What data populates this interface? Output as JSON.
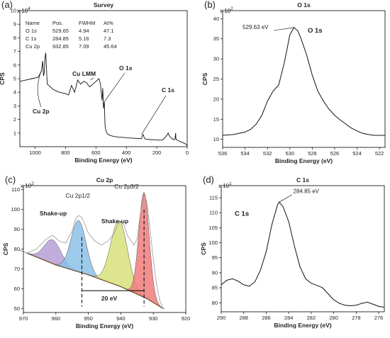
{
  "panels": [
    {
      "letter": "(a)",
      "title": "Survey",
      "exp": "x 10",
      "exp_power": "4",
      "xlabel": "Binding Energy (eV)",
      "ylabel": "CPS",
      "table": {
        "headers": [
          "Name",
          "Pos.",
          "FWHM",
          "At%"
        ],
        "rows": [
          [
            "O 1s",
            "529.65",
            "4.94",
            "47.1"
          ],
          [
            "C 1s",
            "284.85",
            "5.16",
            "7.3"
          ],
          [
            "Cu 2p",
            "932.85",
            "7.09",
            "45.64"
          ]
        ]
      },
      "annotations": [
        "Cu LMM",
        "O 1s",
        "C 1s",
        "Cu 2p"
      ]
    },
    {
      "letter": "(b)",
      "title": "O 1s",
      "exp": "x 10",
      "exp_power": "2",
      "xlabel": "Binding Energy (eV)",
      "ylabel": "CPS",
      "annotations": [
        "529.63 eV",
        "O 1s"
      ]
    },
    {
      "letter": "(c)",
      "title": "Cu 2p",
      "exp": "x 10",
      "exp_power": "2",
      "xlabel": "Binding Energy (eV)",
      "ylabel": "CPS",
      "annotations": [
        "Shake-up",
        "Cu 2p1/2",
        "Shake-up",
        "Cu 2p3/2",
        "20 eV"
      ]
    },
    {
      "letter": "(d)",
      "title": "C 1s",
      "exp": "x 10",
      "exp_power": "1",
      "xlabel": "Binding Energy (eV)",
      "ylabel": "CPS",
      "annotations": [
        "284.85 eV",
        "C 1s"
      ]
    }
  ],
  "chart_data": [
    {
      "type": "line",
      "title": "Survey",
      "xlabel": "Binding Energy (eV)",
      "ylabel": "CPS",
      "xlim": [
        1100,
        0
      ],
      "ylim": [
        0,
        10
      ],
      "x_ticks": [
        1000,
        800,
        600,
        400,
        200,
        0
      ],
      "y_ticks": [
        1,
        2,
        3,
        4,
        5,
        6,
        7,
        8,
        9,
        10
      ],
      "series": [
        {
          "x": [
            1100,
            1060,
            1020,
            980,
            960,
            955,
            950,
            945,
            940,
            935,
            930,
            925,
            920,
            900,
            880,
            860,
            840,
            800,
            780,
            760,
            740,
            720,
            700,
            680,
            660,
            650,
            640,
            620,
            600,
            580,
            570,
            560,
            555,
            550,
            545,
            540,
            535,
            530,
            527,
            524,
            520,
            510,
            500,
            480,
            450,
            420,
            400,
            380,
            350,
            320,
            300,
            295,
            290,
            287,
            284,
            281,
            278,
            270,
            240,
            200,
            180,
            160,
            140,
            130,
            125,
            120,
            110,
            100,
            90,
            80,
            76,
            74,
            70,
            60,
            50,
            40,
            30,
            20,
            10,
            5,
            3,
            0
          ],
          "y": [
            4.8,
            4.9,
            5.0,
            5.1,
            5.5,
            5.8,
            6.3,
            5.2,
            5.4,
            6.5,
            6.9,
            5.8,
            4.6,
            4.4,
            4.2,
            4.1,
            4.0,
            3.9,
            3.8,
            4.5,
            4.0,
            4.9,
            4.6,
            4.8,
            4.7,
            4.5,
            4.4,
            4.6,
            4.8,
            5.0,
            4.6,
            3.4,
            4.3,
            2.8,
            3.3,
            1.6,
            1.2,
            1.1,
            1.0,
            0.95,
            0.9,
            0.85,
            0.8,
            0.75,
            0.7,
            0.68,
            0.66,
            0.64,
            0.62,
            0.6,
            0.58,
            0.8,
            0.9,
            0.85,
            0.7,
            0.62,
            0.58,
            0.55,
            0.52,
            0.5,
            0.48,
            0.5,
            0.75,
            0.9,
            1.0,
            0.85,
            0.7,
            0.6,
            0.5,
            0.55,
            1.0,
            0.6,
            0.5,
            0.45,
            0.4,
            0.35,
            0.3,
            0.25,
            0.2,
            0.15,
            0.1,
            0.05
          ]
        }
      ]
    },
    {
      "type": "line",
      "title": "O 1s",
      "xlabel": "Binding Energy (eV)",
      "ylabel": "CPS",
      "xlim": [
        536,
        521.5
      ],
      "ylim": [
        8,
        42
      ],
      "x_ticks": [
        536,
        534,
        532,
        530,
        528,
        526,
        524,
        522
      ],
      "y_ticks": [
        10,
        15,
        20,
        25,
        30,
        35,
        40
      ],
      "series": [
        {
          "x": [
            536,
            535,
            534,
            533.5,
            533,
            532.5,
            532,
            531.5,
            531,
            530.5,
            530,
            529.63,
            529.3,
            529,
            528.5,
            528,
            527.5,
            527,
            526.5,
            526,
            525.5,
            525,
            524.5,
            524,
            523.5,
            523,
            522.5,
            522,
            521.5
          ],
          "y": [
            11,
            11.2,
            11.8,
            12.5,
            13.8,
            16,
            19.5,
            22,
            23.5,
            29,
            36,
            37.8,
            37,
            35,
            31,
            26,
            22,
            19.5,
            17.5,
            16,
            14.8,
            13.8,
            12.8,
            12.1,
            11.5,
            11.2,
            11,
            11,
            11
          ]
        }
      ]
    },
    {
      "type": "line",
      "title": "Cu 2p",
      "xlabel": "Binding Energy (eV)",
      "ylabel": "CPS",
      "xlim": [
        970,
        920
      ],
      "ylim": [
        48,
        112
      ],
      "x_ticks": [
        970,
        960,
        950,
        940,
        930,
        920
      ],
      "y_ticks": [
        50,
        60,
        70,
        80,
        90,
        100,
        110
      ],
      "series": [
        {
          "x": [
            969,
            966,
            963,
            961,
            959,
            957,
            955,
            954,
            953,
            952,
            951,
            950,
            948,
            946,
            944,
            942,
            941,
            940,
            939,
            938,
            936,
            935,
            934,
            933,
            932.85,
            932,
            931,
            930,
            929,
            928,
            927
          ],
          "y": [
            78,
            80,
            85,
            87,
            84,
            83,
            89,
            95,
            97,
            96,
            92,
            88,
            84,
            82,
            84,
            88,
            92,
            94,
            92,
            87,
            82,
            85,
            98,
            106,
            108,
            104,
            90,
            75,
            62,
            54,
            50
          ]
        },
        {
          "x": [
            969,
            960,
            950,
            940,
            932,
            927
          ],
          "y": [
            78,
            72,
            67,
            61,
            55,
            50
          ]
        }
      ]
    },
    {
      "type": "line",
      "title": "C 1s",
      "xlabel": "Binding Energy (eV)",
      "ylabel": "CPS",
      "xlim": [
        290,
        275.5
      ],
      "ylim": [
        77,
        119
      ],
      "x_ticks": [
        290,
        288,
        286,
        284,
        282,
        280,
        278,
        276
      ],
      "y_ticks": [
        80,
        85,
        90,
        95,
        100,
        105,
        110,
        115
      ],
      "series": [
        {
          "x": [
            290,
            289.5,
            289,
            288.5,
            288,
            287.5,
            287,
            286.5,
            286,
            285.5,
            285,
            284.85,
            284.5,
            284,
            283.5,
            283,
            282.5,
            282,
            281.5,
            281,
            280.5,
            280,
            279.5,
            279,
            278.5,
            278,
            277.5,
            277,
            276.5,
            276,
            275.5
          ],
          "y": [
            86,
            87.5,
            88,
            87.2,
            86,
            85.5,
            87,
            91,
            97,
            106,
            112.5,
            113.5,
            112,
            107,
            99,
            92,
            88,
            86.5,
            85.8,
            85,
            83,
            81,
            79.8,
            79.2,
            79,
            79.2,
            79.8,
            80.2,
            79.5,
            78.8,
            78.5
          ]
        }
      ]
    }
  ]
}
